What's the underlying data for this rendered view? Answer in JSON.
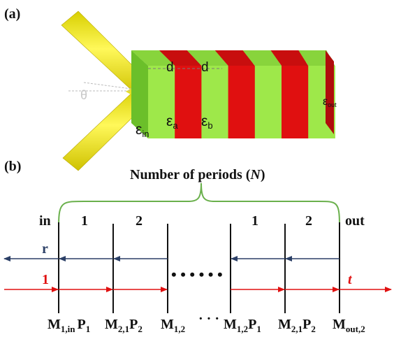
{
  "panel_a": {
    "label": "(a)",
    "theta": "θ",
    "d_a": "d",
    "d_b": "d",
    "eps_in": {
      "base": "ε",
      "sub": "in"
    },
    "eps_a": {
      "base": "ε",
      "sub": "a"
    },
    "eps_b": {
      "base": "ε",
      "sub": "b"
    },
    "eps_out": {
      "base": "ε",
      "sub": "out"
    },
    "colors": {
      "beam": "#f2ea14",
      "layer_a": "#9ee84a",
      "layer_b": "#e01010",
      "side": "#6bbf2a"
    }
  },
  "panel_b": {
    "label": "(b)",
    "periods_title": {
      "prefix": "Number of periods (",
      "var": "N",
      "suffix": ")"
    },
    "in_label": "in",
    "out_label": "out",
    "layer_labels": [
      "1",
      "2",
      "1",
      "2"
    ],
    "r_label": "r",
    "incident_label": "1",
    "t_label": "t",
    "dots": "• • • • • •",
    "bottom_labels": [
      {
        "base": "M",
        "sub": "1,in"
      },
      {
        "base": "P",
        "sub": "1"
      },
      {
        "base": "M",
        "sub": "2,1"
      },
      {
        "base": "P",
        "sub": "2"
      },
      {
        "base": "M",
        "sub": "1,2"
      },
      {
        "base": "M",
        "sub": "1,2"
      },
      {
        "base": "P",
        "sub": "1"
      },
      {
        "base": "M",
        "sub": "2,1"
      },
      {
        "base": "P",
        "sub": "2"
      },
      {
        "base": "M",
        "sub": "out,2"
      }
    ],
    "bottom_dots": "· · ·",
    "colors": {
      "brace": "#6ab04c",
      "reflected": "#2b3f66",
      "transmitted": "#e01010"
    }
  }
}
